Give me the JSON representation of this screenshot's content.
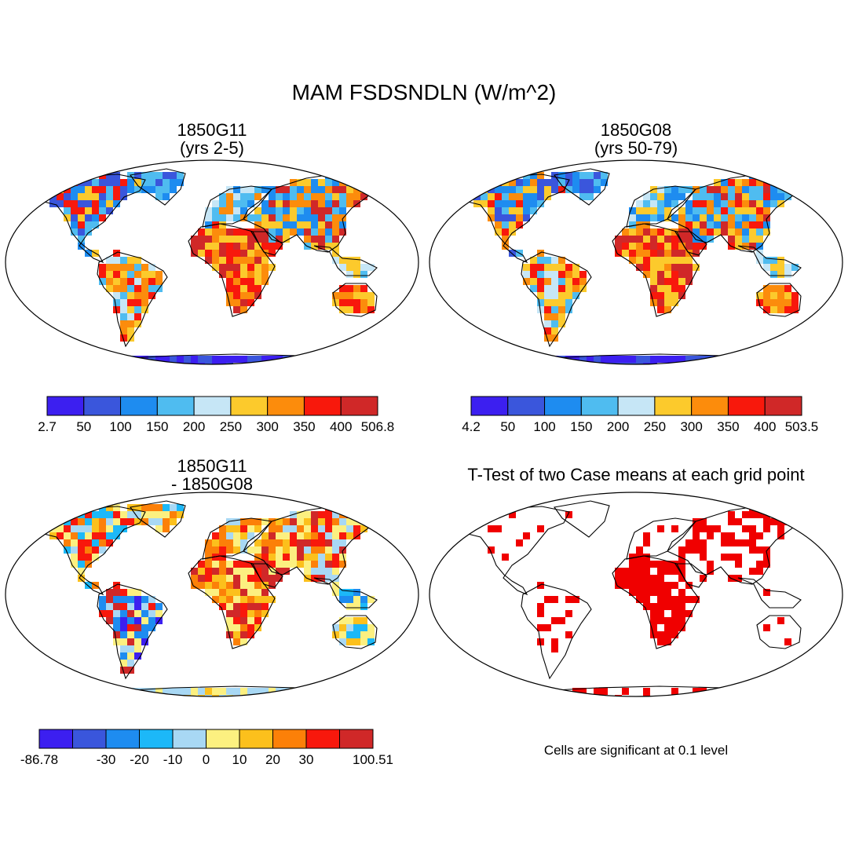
{
  "figure": {
    "title": "MAM FSDSNDLN (W/m^2)"
  },
  "panels": [
    {
      "id": "case1",
      "title_line1": "1850G11",
      "title_line2": "(yrs 2-5)",
      "colorbar": {
        "colors": [
          "#3c1ff0",
          "#3a56dc",
          "#1e8cf0",
          "#4fbcf0",
          "#c6e6f6",
          "#fcca2c",
          "#fc8c0c",
          "#f8180c",
          "#d02828"
        ],
        "labels": [
          "2.7",
          "50",
          "100",
          "150",
          "200",
          "250",
          "300",
          "350",
          "400",
          "506.8"
        ]
      }
    },
    {
      "id": "case2",
      "title_line1": "1850G08",
      "title_line2": "(yrs 50-79)",
      "colorbar": {
        "colors": [
          "#3c1ff0",
          "#3a56dc",
          "#1e8cf0",
          "#4fbcf0",
          "#c6e6f6",
          "#fcca2c",
          "#fc8c0c",
          "#f8180c",
          "#d02828"
        ],
        "labels": [
          "4.2",
          "50",
          "100",
          "150",
          "200",
          "250",
          "300",
          "350",
          "400",
          "503.5"
        ]
      }
    },
    {
      "id": "difference",
      "title_line1": "1850G11",
      "title_line2": "- 1850G08",
      "colorbar": {
        "colors": [
          "#3c1ff0",
          "#3a56dc",
          "#1e8cf0",
          "#1cb8f8",
          "#a8d8f4",
          "#fcf080",
          "#fcc01c",
          "#fc8008",
          "#f8180c",
          "#d02828"
        ],
        "labels": [
          "-86.78",
          "",
          "-30",
          "-20",
          "-10",
          "0",
          "10",
          "20",
          "30",
          "",
          "100.51"
        ]
      }
    },
    {
      "id": "ttest",
      "title_line1": "T-Test of two Case means at each grid point",
      "note": "Cells are significant at 0.1 level",
      "significant_color": "#f00000"
    }
  ]
}
